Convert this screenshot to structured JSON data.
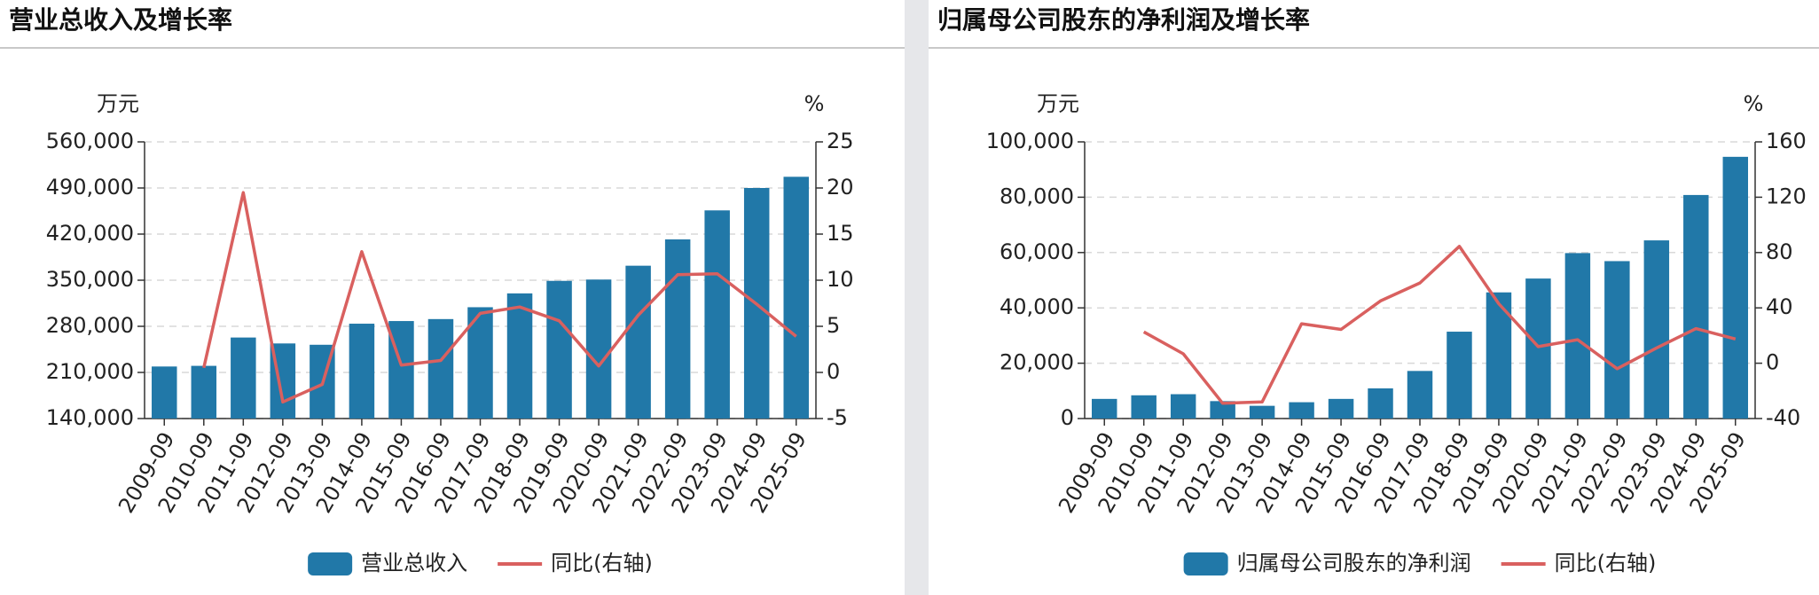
{
  "chart_data": [
    {
      "type": "bar",
      "title": "营业总收入及增长率",
      "ylabel": "万元",
      "y2label": "%",
      "categories": [
        "2009-09",
        "2010-09",
        "2011-09",
        "2012-09",
        "2013-09",
        "2014-09",
        "2015-09",
        "2016-09",
        "2017-09",
        "2018-09",
        "2019-09",
        "2020-09",
        "2021-09",
        "2022-09",
        "2023-09",
        "2024-09",
        "2025-09"
      ],
      "series": [
        {
          "name": "营业总收入",
          "type": "bar",
          "color": "#2178a8",
          "values": [
            219000,
            220000,
            263000,
            254000,
            252000,
            284000,
            288000,
            291000,
            309000,
            330000,
            349000,
            351000,
            372000,
            412000,
            456000,
            490000,
            507000
          ]
        },
        {
          "name": "同比(右轴)",
          "type": "line",
          "axis": "y2",
          "color": "#d9605f",
          "values": [
            null,
            0.5,
            19.5,
            -3.2,
            -1.3,
            13.1,
            0.8,
            1.3,
            6.4,
            7.1,
            5.6,
            0.7,
            6.2,
            10.6,
            10.7,
            7.4,
            3.9
          ]
        }
      ],
      "ylim": [
        140000,
        560000
      ],
      "yticks": [
        {
          "value": 140000,
          "label": "140,000"
        },
        {
          "value": 210000,
          "label": "210,000"
        },
        {
          "value": 280000,
          "label": "280,000"
        },
        {
          "value": 350000,
          "label": "350,000"
        },
        {
          "value": 420000,
          "label": "420,000"
        },
        {
          "value": 490000,
          "label": "490,000"
        },
        {
          "value": 560000,
          "label": "560,000"
        }
      ],
      "y2lim": [
        -5,
        25
      ],
      "y2ticks": [
        -5,
        0,
        5,
        10,
        15,
        20,
        25
      ],
      "grid": true
    },
    {
      "type": "bar",
      "title": "归属母公司股东的净利润及增长率",
      "ylabel": "万元",
      "y2label": "%",
      "categories": [
        "2009-09",
        "2010-09",
        "2011-09",
        "2012-09",
        "2013-09",
        "2014-09",
        "2015-09",
        "2016-09",
        "2017-09",
        "2018-09",
        "2019-09",
        "2020-09",
        "2021-09",
        "2022-09",
        "2023-09",
        "2024-09",
        "2025-09"
      ],
      "series": [
        {
          "name": "归属母公司股东的净利润",
          "type": "bar",
          "color": "#2178a8",
          "values": [
            7100,
            8400,
            8800,
            6300,
            4600,
            5900,
            7100,
            10900,
            17200,
            31400,
            45600,
            50600,
            59800,
            56900,
            64400,
            80800,
            94600
          ]
        },
        {
          "name": "同比(右轴)",
          "type": "line",
          "axis": "y2",
          "color": "#d9605f",
          "values": [
            null,
            22.6,
            6.8,
            -29,
            -28,
            28.5,
            24.4,
            45,
            58,
            84.5,
            43,
            12,
            17,
            -4,
            11,
            25,
            17.5
          ]
        }
      ],
      "ylim": [
        0,
        100000
      ],
      "yticks": [
        0,
        {
          "value": 20000,
          "label": "20,000"
        },
        {
          "value": 40000,
          "label": "40,000"
        },
        {
          "value": 60000,
          "label": "60,000"
        },
        {
          "value": 80000,
          "label": "80,000"
        },
        {
          "value": 100000,
          "label": "100,000"
        }
      ],
      "y2lim": [
        -40,
        160
      ],
      "y2ticks": [
        -40,
        0,
        40,
        80,
        120,
        160
      ],
      "grid": true
    }
  ]
}
